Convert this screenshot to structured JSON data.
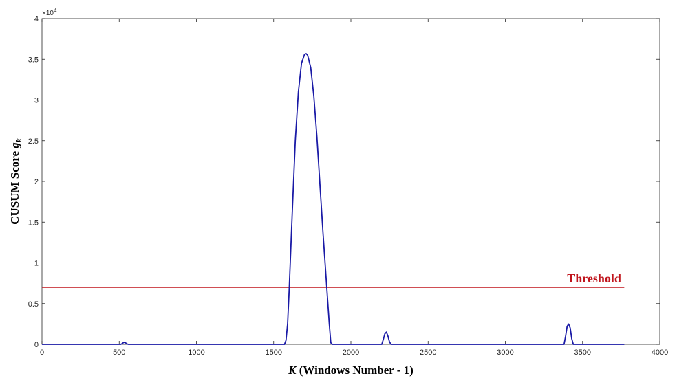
{
  "chart_data": {
    "type": "line",
    "xlabel_var": "K",
    "xlabel_rest": " (Windows Number - 1)",
    "ylabel_main": "CUSUM Score ",
    "ylabel_var": "g",
    "ylabel_sub": "k",
    "y_exponent_label": "×10",
    "y_exponent_power": "4",
    "xlim": [
      0,
      4000
    ],
    "ylim": [
      0,
      4
    ],
    "x_ticks": [
      0,
      500,
      1000,
      1500,
      2000,
      2500,
      3000,
      3500,
      4000
    ],
    "x_tick_labels": [
      "0",
      "500",
      "1000",
      "1500",
      "2000",
      "2500",
      "3000",
      "3500",
      "4000"
    ],
    "y_ticks": [
      0,
      0.5,
      1,
      1.5,
      2,
      2.5,
      3,
      3.5,
      4
    ],
    "y_tick_labels": [
      "0",
      "0.5",
      "1",
      "1.5",
      "2",
      "2.5",
      "3",
      "3.5",
      "4"
    ],
    "grid": false,
    "series": [
      {
        "color": "#1a1aa6",
        "x": [
          0,
          510,
          520,
          530,
          540,
          550,
          560,
          1570,
          1580,
          1590,
          1600,
          1620,
          1640,
          1660,
          1680,
          1700,
          1710,
          1720,
          1740,
          1760,
          1780,
          1800,
          1820,
          1840,
          1860,
          1870,
          1880,
          2200,
          2210,
          2220,
          2230,
          2240,
          2250,
          2260,
          3380,
          3390,
          3400,
          3410,
          3420,
          3430,
          3440,
          3770
        ],
        "y": [
          0,
          0,
          0.01,
          0.025,
          0.02,
          0.005,
          0,
          0,
          0.05,
          0.25,
          0.65,
          1.6,
          2.5,
          3.1,
          3.45,
          3.56,
          3.57,
          3.55,
          3.4,
          3.05,
          2.55,
          1.95,
          1.35,
          0.8,
          0.25,
          0.02,
          0,
          0,
          0.06,
          0.13,
          0.15,
          0.1,
          0.03,
          0,
          0,
          0.1,
          0.22,
          0.25,
          0.2,
          0.07,
          0,
          0
        ]
      }
    ],
    "threshold": {
      "label": "Threshold",
      "value": 0.7,
      "x_range": [
        0,
        3770
      ],
      "color": "#c0141c"
    }
  }
}
